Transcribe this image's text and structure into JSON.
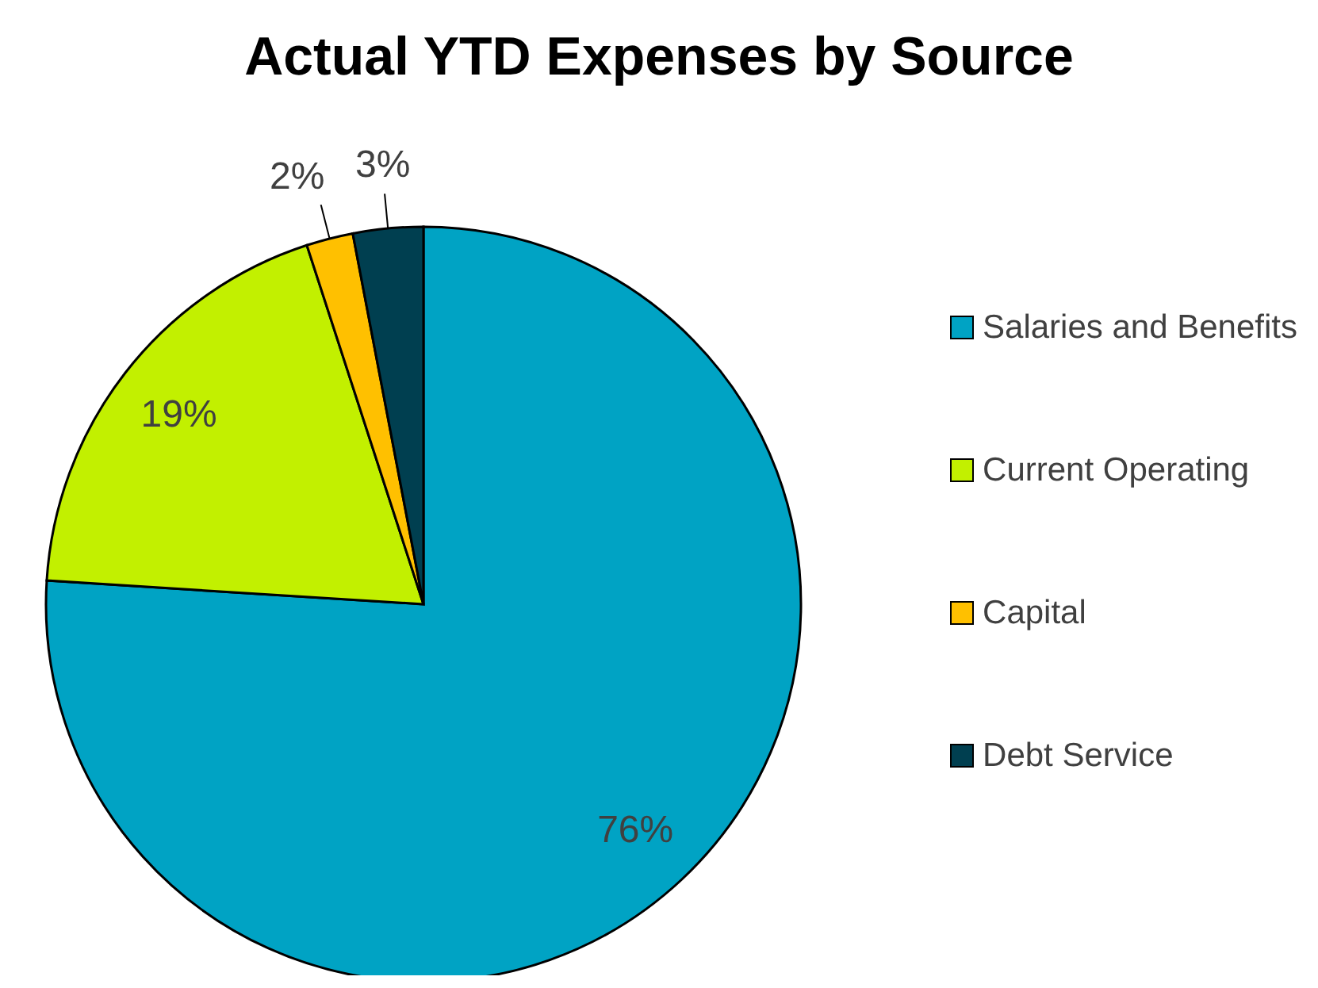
{
  "chart_data": {
    "type": "pie",
    "title": "Actual YTD Expenses by Source",
    "categories": [
      "Salaries and Benefits",
      "Current Operating",
      "Capital",
      "Debt Service"
    ],
    "values": [
      76,
      19,
      2,
      3
    ],
    "colors": [
      "#00a3c4",
      "#c2f000",
      "#ffc000",
      "#003f50"
    ],
    "value_labels": [
      "76%",
      "19%",
      "2%",
      "3%"
    ],
    "legend": "right"
  }
}
